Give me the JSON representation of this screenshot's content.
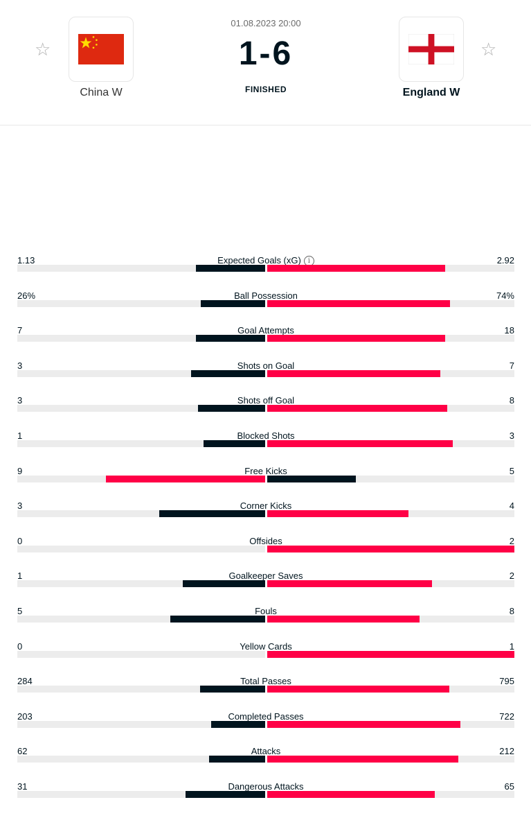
{
  "match": {
    "datetime": "01.08.2023 20:00",
    "score": "1-6",
    "status": "FINISHED",
    "home_team": "China W",
    "away_team": "England W"
  },
  "icons": {
    "favorite": "star-outline-icon",
    "info": "info-icon"
  },
  "colors": {
    "accent": "#ff0046",
    "dark": "#00141e",
    "track": "#ececec"
  },
  "stats": [
    {
      "label": "Expected Goals (xG)",
      "home": "1.13",
      "away": "2.92",
      "home_val": 1.13,
      "away_val": 2.92,
      "info": true
    },
    {
      "label": "Ball Possession",
      "home": "26%",
      "away": "74%",
      "home_val": 26,
      "away_val": 74
    },
    {
      "label": "Goal Attempts",
      "home": "7",
      "away": "18",
      "home_val": 7,
      "away_val": 18
    },
    {
      "label": "Shots on Goal",
      "home": "3",
      "away": "7",
      "home_val": 3,
      "away_val": 7
    },
    {
      "label": "Shots off Goal",
      "home": "3",
      "away": "8",
      "home_val": 3,
      "away_val": 8
    },
    {
      "label": "Blocked Shots",
      "home": "1",
      "away": "3",
      "home_val": 1,
      "away_val": 3
    },
    {
      "label": "Free Kicks",
      "home": "9",
      "away": "5",
      "home_val": 9,
      "away_val": 5
    },
    {
      "label": "Corner Kicks",
      "home": "3",
      "away": "4",
      "home_val": 3,
      "away_val": 4
    },
    {
      "label": "Offsides",
      "home": "0",
      "away": "2",
      "home_val": 0,
      "away_val": 2
    },
    {
      "label": "Goalkeeper Saves",
      "home": "1",
      "away": "2",
      "home_val": 1,
      "away_val": 2
    },
    {
      "label": "Fouls",
      "home": "5",
      "away": "8",
      "home_val": 5,
      "away_val": 8
    },
    {
      "label": "Yellow Cards",
      "home": "0",
      "away": "1",
      "home_val": 0,
      "away_val": 1
    },
    {
      "label": "Total Passes",
      "home": "284",
      "away": "795",
      "home_val": 284,
      "away_val": 795
    },
    {
      "label": "Completed Passes",
      "home": "203",
      "away": "722",
      "home_val": 203,
      "away_val": 722
    },
    {
      "label": "Attacks",
      "home": "62",
      "away": "212",
      "home_val": 62,
      "away_val": 212
    },
    {
      "label": "Dangerous Attacks",
      "home": "31",
      "away": "65",
      "home_val": 31,
      "away_val": 65
    }
  ]
}
